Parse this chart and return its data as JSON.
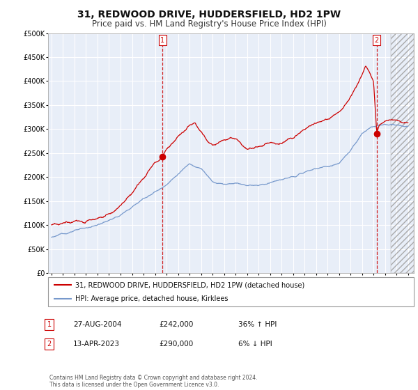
{
  "title": "31, REDWOOD DRIVE, HUDDERSFIELD, HD2 1PW",
  "subtitle": "Price paid vs. HM Land Registry's House Price Index (HPI)",
  "title_fontsize": 10,
  "subtitle_fontsize": 8.5,
  "background_color": "#ffffff",
  "plot_bg_color": "#e8eef8",
  "grid_color": "#ffffff",
  "red_color": "#cc0000",
  "blue_color": "#7799cc",
  "marker1_x": 2004.65,
  "marker1_y": 242000,
  "marker2_x": 2023.28,
  "marker2_y": 290000,
  "ylim": [
    0,
    500000
  ],
  "xlim": [
    1994.7,
    2026.5
  ],
  "yticks": [
    0,
    50000,
    100000,
    150000,
    200000,
    250000,
    300000,
    350000,
    400000,
    450000,
    500000
  ],
  "ytick_labels": [
    "£0",
    "£50K",
    "£100K",
    "£150K",
    "£200K",
    "£250K",
    "£300K",
    "£350K",
    "£400K",
    "£450K",
    "£500K"
  ],
  "xtick_years": [
    1995,
    1996,
    1997,
    1998,
    1999,
    2000,
    2001,
    2002,
    2003,
    2004,
    2005,
    2006,
    2007,
    2008,
    2009,
    2010,
    2011,
    2012,
    2013,
    2014,
    2015,
    2016,
    2017,
    2018,
    2019,
    2020,
    2021,
    2022,
    2023,
    2024,
    2025,
    2026
  ],
  "legend_red_label": "31, REDWOOD DRIVE, HUDDERSFIELD, HD2 1PW (detached house)",
  "legend_blue_label": "HPI: Average price, detached house, Kirklees",
  "sale1_label": "1",
  "sale1_date": "27-AUG-2004",
  "sale1_price": "£242,000",
  "sale1_hpi": "36% ↑ HPI",
  "sale2_label": "2",
  "sale2_date": "13-APR-2023",
  "sale2_price": "£290,000",
  "sale2_hpi": "6% ↓ HPI",
  "footer": "Contains HM Land Registry data © Crown copyright and database right 2024.\nThis data is licensed under the Open Government Licence v3.0.",
  "hatch_start": 2024.5
}
